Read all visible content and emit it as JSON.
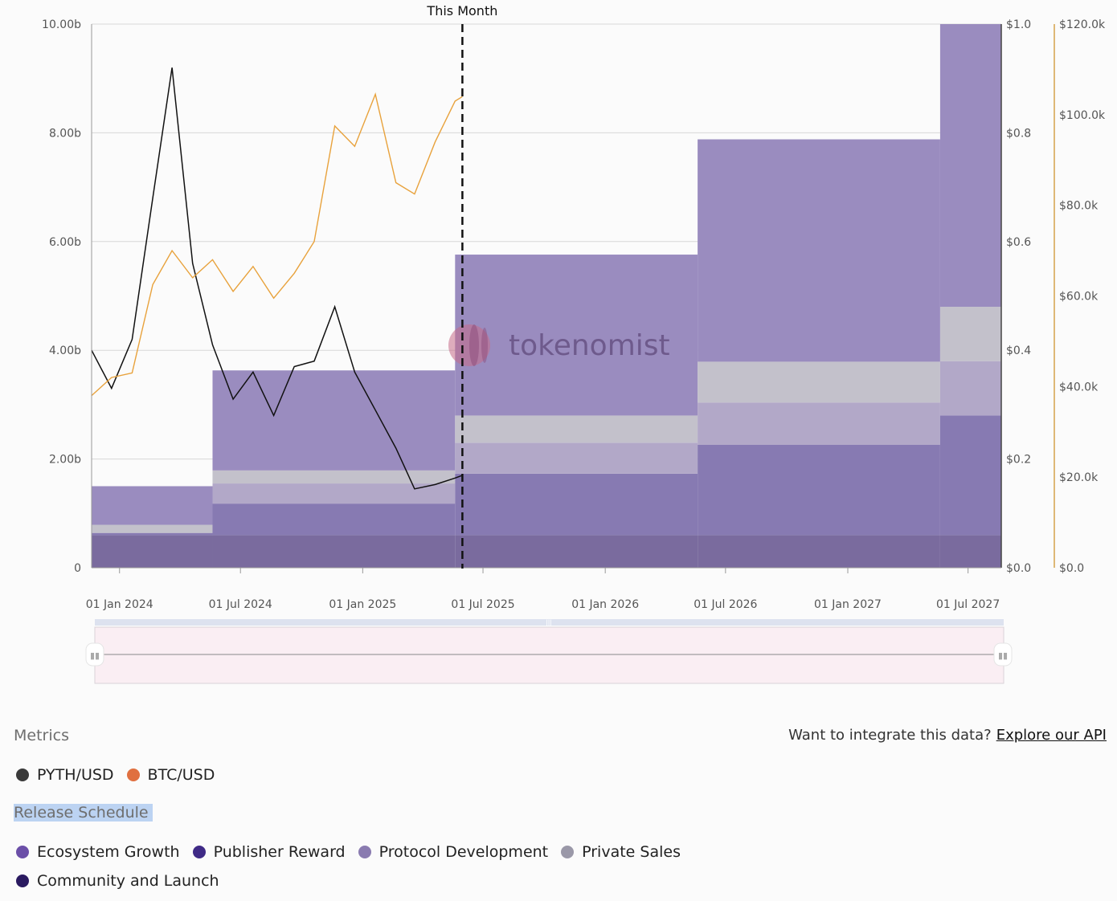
{
  "chart_data": {
    "type": "area",
    "annotation": "This Month",
    "annotation_date": "2025-05-31",
    "watermark": "tokenomist",
    "x_ticks": [
      "01 Jan 2024",
      "01 Jul 2024",
      "01 Jan 2025",
      "01 Jul 2025",
      "01 Jan 2026",
      "01 Jul 2026",
      "01 Jan 2027",
      "01 Jul 2027"
    ],
    "x_tick_dates": [
      "2024-01-01",
      "2024-07-01",
      "2025-01-01",
      "2025-07-01",
      "2026-01-01",
      "2026-07-01",
      "2027-01-01",
      "2027-07-01"
    ],
    "x_range": [
      "2023-11-20",
      "2027-08-20"
    ],
    "y_left": {
      "ticks": [
        "0",
        "2.00b",
        "4.00b",
        "6.00b",
        "8.00b",
        "10.00b"
      ],
      "range": [
        0,
        10
      ]
    },
    "y_right1": {
      "ticks": [
        "$0.0",
        "$0.2",
        "$0.4",
        "$0.6",
        "$0.8",
        "$1.0"
      ],
      "range": [
        0,
        1.0
      ]
    },
    "y_right2": {
      "ticks": [
        "$0.0",
        "$20.0k",
        "$40.0k",
        "$60.0k",
        "$80.0k",
        "$100.0k",
        "$120.0k"
      ],
      "range": [
        0,
        120000
      ]
    },
    "steps": [
      {
        "start": "2023-11-20",
        "end": "2024-05-20",
        "values": [
          0.6,
          0.04,
          0.0,
          0.15,
          0.71
        ]
      },
      {
        "start": "2024-05-20",
        "end": "2025-05-20",
        "values": [
          0.6,
          0.58,
          0.37,
          0.24,
          1.84
        ]
      },
      {
        "start": "2025-05-20",
        "end": "2026-05-20",
        "values": [
          0.6,
          1.13,
          0.57,
          0.5,
          2.96
        ]
      },
      {
        "start": "2026-05-20",
        "end": "2027-05-20",
        "values": [
          0.6,
          1.66,
          0.78,
          0.75,
          4.09
        ]
      },
      {
        "start": "2027-05-20",
        "end": "2027-08-20",
        "values": [
          0.6,
          2.2,
          1.0,
          1.0,
          5.2
        ]
      }
    ],
    "series": [
      {
        "name": "Community and Launch",
        "color": "#7a6b9e",
        "role": "area"
      },
      {
        "name": "Publisher Reward",
        "color": "#877ab2",
        "role": "area"
      },
      {
        "name": "Protocol Development",
        "color": "#b2a8c8",
        "role": "area"
      },
      {
        "name": "Private Sales",
        "color": "#c3c1cb",
        "role": "area"
      },
      {
        "name": "Ecosystem Growth",
        "color": "#9a8cbf",
        "role": "area"
      },
      {
        "name": "PYTH/USD",
        "color": "#111111",
        "role": "line",
        "axis": "right1",
        "dates": [
          "2023-11-20",
          "2023-12-20",
          "2024-01-20",
          "2024-02-20",
          "2024-03-20",
          "2024-04-20",
          "2024-05-20",
          "2024-06-20",
          "2024-07-20",
          "2024-08-20",
          "2024-09-20",
          "2024-10-20",
          "2024-11-20",
          "2024-12-20",
          "2025-01-20",
          "2025-02-20",
          "2025-03-20",
          "2025-04-20",
          "2025-05-20",
          "2025-05-31"
        ],
        "values": [
          0.4,
          0.33,
          0.42,
          0.68,
          0.92,
          0.56,
          0.41,
          0.31,
          0.36,
          0.28,
          0.37,
          0.38,
          0.48,
          0.36,
          0.29,
          0.22,
          0.145,
          0.153,
          0.165,
          0.17
        ]
      },
      {
        "name": "BTC/USD",
        "color": "#e8a23c",
        "role": "line",
        "axis": "right2",
        "dates": [
          "2023-11-20",
          "2023-12-20",
          "2024-01-20",
          "2024-02-20",
          "2024-03-20",
          "2024-04-20",
          "2024-05-20",
          "2024-06-20",
          "2024-07-20",
          "2024-08-20",
          "2024-09-20",
          "2024-10-20",
          "2024-11-20",
          "2024-12-20",
          "2025-01-20",
          "2025-02-20",
          "2025-03-20",
          "2025-04-20",
          "2025-05-20",
          "2025-05-31"
        ],
        "values": [
          38000,
          42000,
          43000,
          62500,
          70000,
          64000,
          68000,
          61000,
          66500,
          59500,
          65000,
          72000,
          97500,
          93000,
          104500,
          85000,
          82500,
          94000,
          103000,
          104000
        ]
      }
    ]
  },
  "footer": {
    "metrics_title": "Metrics",
    "api_prompt": "Want to integrate this data?",
    "api_link": "Explore our API",
    "release_title": "Release Schedule",
    "metrics": [
      {
        "label": "PYTH/USD",
        "color": "#3a3a3a"
      },
      {
        "label": "BTC/USD",
        "color": "#e07040"
      }
    ],
    "release": [
      {
        "label": "Ecosystem Growth",
        "color": "#6b4fa8"
      },
      {
        "label": "Publisher Reward",
        "color": "#3f2a86"
      },
      {
        "label": "Protocol Development",
        "color": "#8a7bb0"
      },
      {
        "label": "Private Sales",
        "color": "#9a98a8"
      },
      {
        "label": "Community and Launch",
        "color": "#2a1a60"
      }
    ]
  }
}
